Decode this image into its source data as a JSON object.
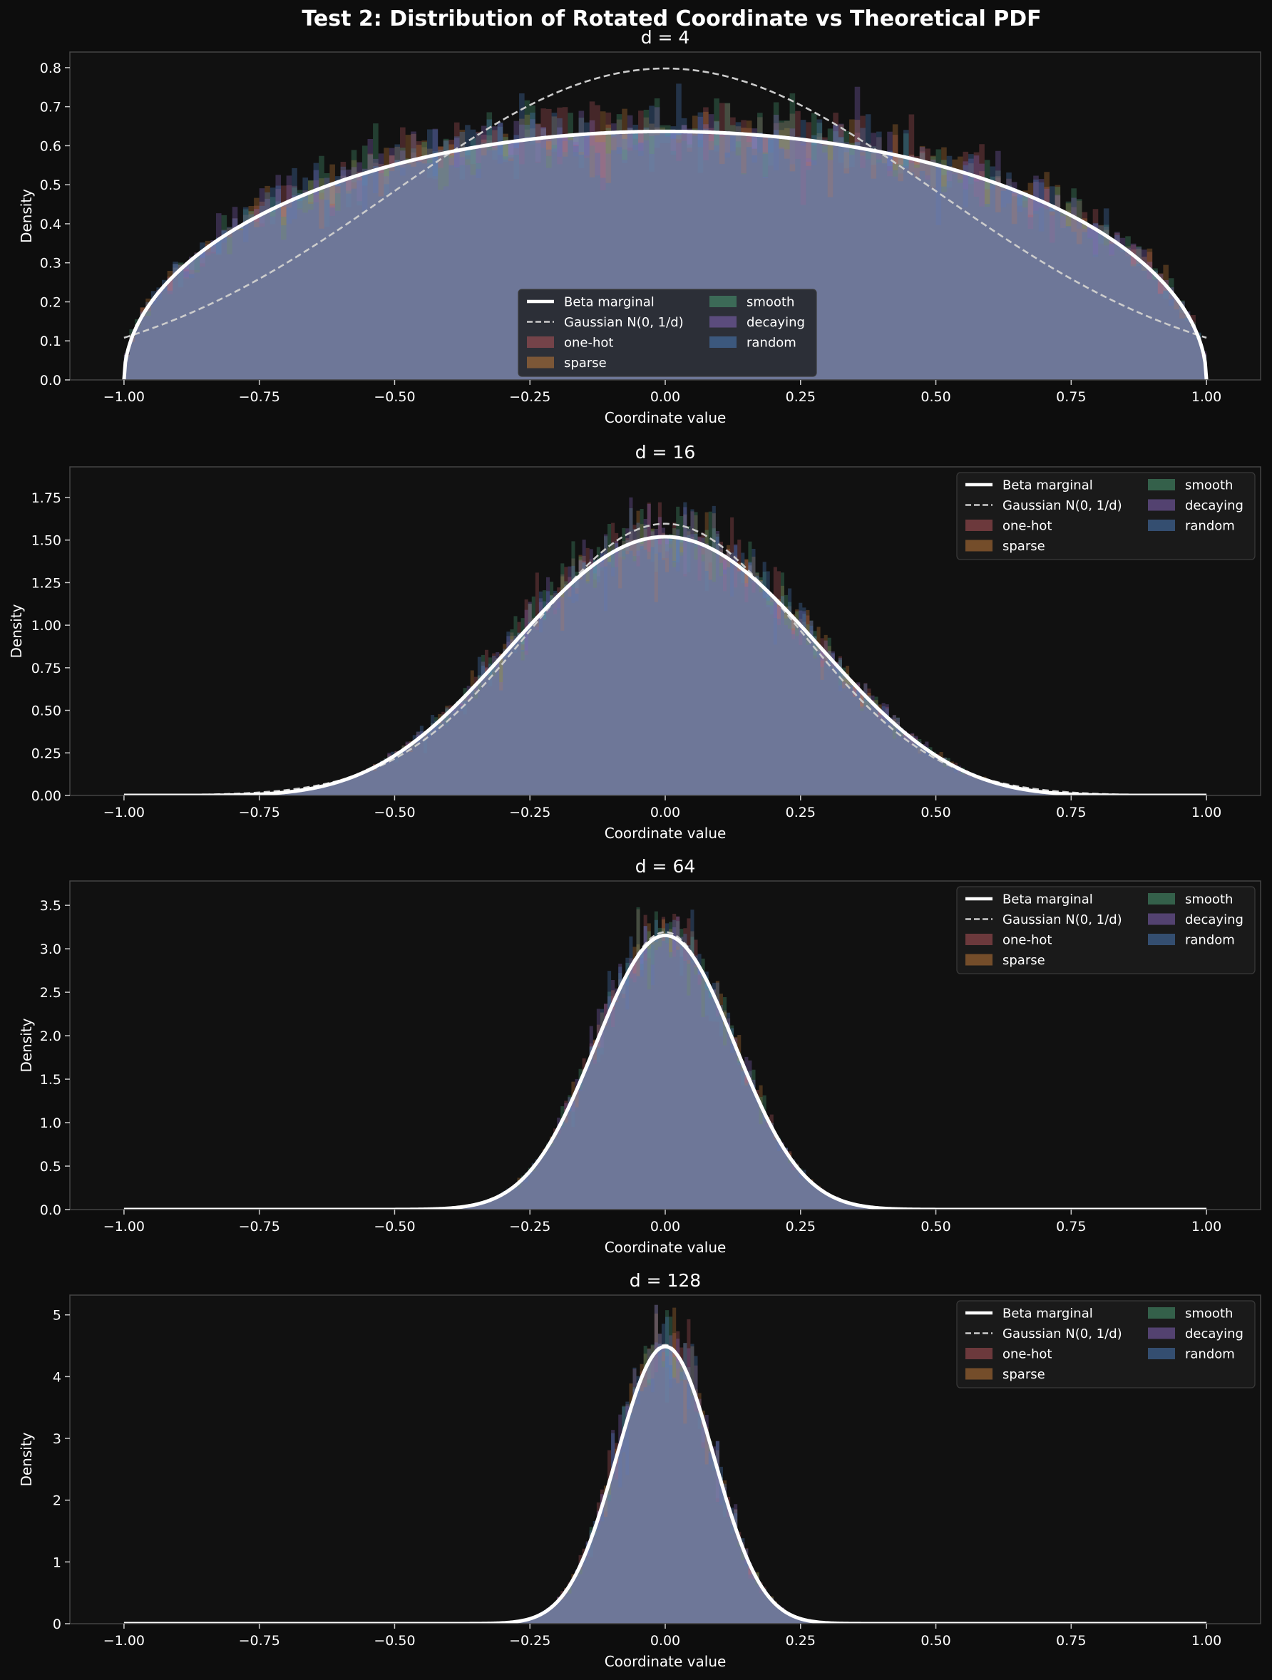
{
  "figure": {
    "title": "Test 2: Distribution of Rotated Coordinate vs Theoretical PDF",
    "background": "#0d0d0d"
  },
  "legend": {
    "entries": [
      {
        "label": "Beta marginal",
        "kind": "line",
        "color": "#ffffff",
        "dash": false
      },
      {
        "label": "Gaussian N(0, 1/d)",
        "kind": "line",
        "color": "#cccccc",
        "dash": true
      },
      {
        "label": "one-hot",
        "kind": "patch",
        "color": "#b0545a"
      },
      {
        "label": "sparse",
        "kind": "patch",
        "color": "#c07838"
      },
      {
        "label": "smooth",
        "kind": "patch",
        "color": "#4a9a72"
      },
      {
        "label": "decaying",
        "kind": "patch",
        "color": "#8464b8"
      },
      {
        "label": "random",
        "kind": "patch",
        "color": "#4a7ab8"
      }
    ]
  },
  "chart_data": [
    {
      "type": "histogram-with-pdf",
      "title": "d = 4",
      "d": 4,
      "xlabel": "Coordinate value",
      "ylabel": "Density",
      "xlim": [
        -1.1,
        1.1
      ],
      "ylim": [
        0,
        0.84
      ],
      "xticks": [
        "−1.00",
        "−0.75",
        "−0.50",
        "−0.25",
        "0.00",
        "0.25",
        "0.50",
        "0.75",
        "1.00"
      ],
      "yticks": [
        "0.0",
        "0.1",
        "0.2",
        "0.3",
        "0.4",
        "0.5",
        "0.6",
        "0.7",
        "0.8"
      ],
      "ytick_values": [
        0,
        0.1,
        0.2,
        0.3,
        0.4,
        0.5,
        0.6,
        0.7,
        0.8
      ],
      "legend_position": "lower-center",
      "beta_peak": 0.637,
      "gaussian_peak": 0.798,
      "series": [
        "one-hot",
        "sparse",
        "smooth",
        "decaying",
        "random"
      ]
    },
    {
      "type": "histogram-with-pdf",
      "title": "d = 16",
      "d": 16,
      "xlabel": "Coordinate value",
      "ylabel": "Density",
      "xlim": [
        -1.1,
        1.1
      ],
      "ylim": [
        0,
        1.93
      ],
      "xticks": [
        "−1.00",
        "−0.75",
        "−0.50",
        "−0.25",
        "0.00",
        "0.25",
        "0.50",
        "0.75",
        "1.00"
      ],
      "yticks": [
        "0.00",
        "0.25",
        "0.50",
        "0.75",
        "1.00",
        "1.25",
        "1.50",
        "1.75"
      ],
      "ytick_values": [
        0,
        0.25,
        0.5,
        0.75,
        1.0,
        1.25,
        1.5,
        1.75
      ],
      "legend_position": "upper-right",
      "beta_peak": 1.52,
      "gaussian_peak": 1.596,
      "series": [
        "one-hot",
        "sparse",
        "smooth",
        "decaying",
        "random"
      ]
    },
    {
      "type": "histogram-with-pdf",
      "title": "d = 64",
      "d": 64,
      "xlabel": "Coordinate value",
      "ylabel": "Density",
      "xlim": [
        -1.1,
        1.1
      ],
      "ylim": [
        0,
        3.78
      ],
      "xticks": [
        "−1.00",
        "−0.75",
        "−0.50",
        "−0.25",
        "0.00",
        "0.25",
        "0.50",
        "0.75",
        "1.00"
      ],
      "yticks": [
        "0.0",
        "0.5",
        "1.0",
        "1.5",
        "2.0",
        "2.5",
        "3.0",
        "3.5"
      ],
      "ytick_values": [
        0,
        0.5,
        1.0,
        1.5,
        2.0,
        2.5,
        3.0,
        3.5
      ],
      "legend_position": "upper-right",
      "beta_peak": 3.16,
      "gaussian_peak": 3.19,
      "series": [
        "one-hot",
        "sparse",
        "smooth",
        "decaying",
        "random"
      ]
    },
    {
      "type": "histogram-with-pdf",
      "title": "d = 128",
      "d": 128,
      "xlabel": "Coordinate value",
      "ylabel": "Density",
      "xlim": [
        -1.1,
        1.1
      ],
      "ylim": [
        0,
        5.32
      ],
      "xticks": [
        "−1.00",
        "−0.75",
        "−0.50",
        "−0.25",
        "0.00",
        "0.25",
        "0.50",
        "0.75",
        "1.00"
      ],
      "yticks": [
        "0",
        "1",
        "2",
        "3",
        "4",
        "5"
      ],
      "ytick_values": [
        0,
        1,
        2,
        3,
        4,
        5
      ],
      "legend_position": "upper-right",
      "beta_peak": 4.5,
      "gaussian_peak": 4.51,
      "series": [
        "one-hot",
        "sparse",
        "smooth",
        "decaying",
        "random"
      ]
    }
  ]
}
